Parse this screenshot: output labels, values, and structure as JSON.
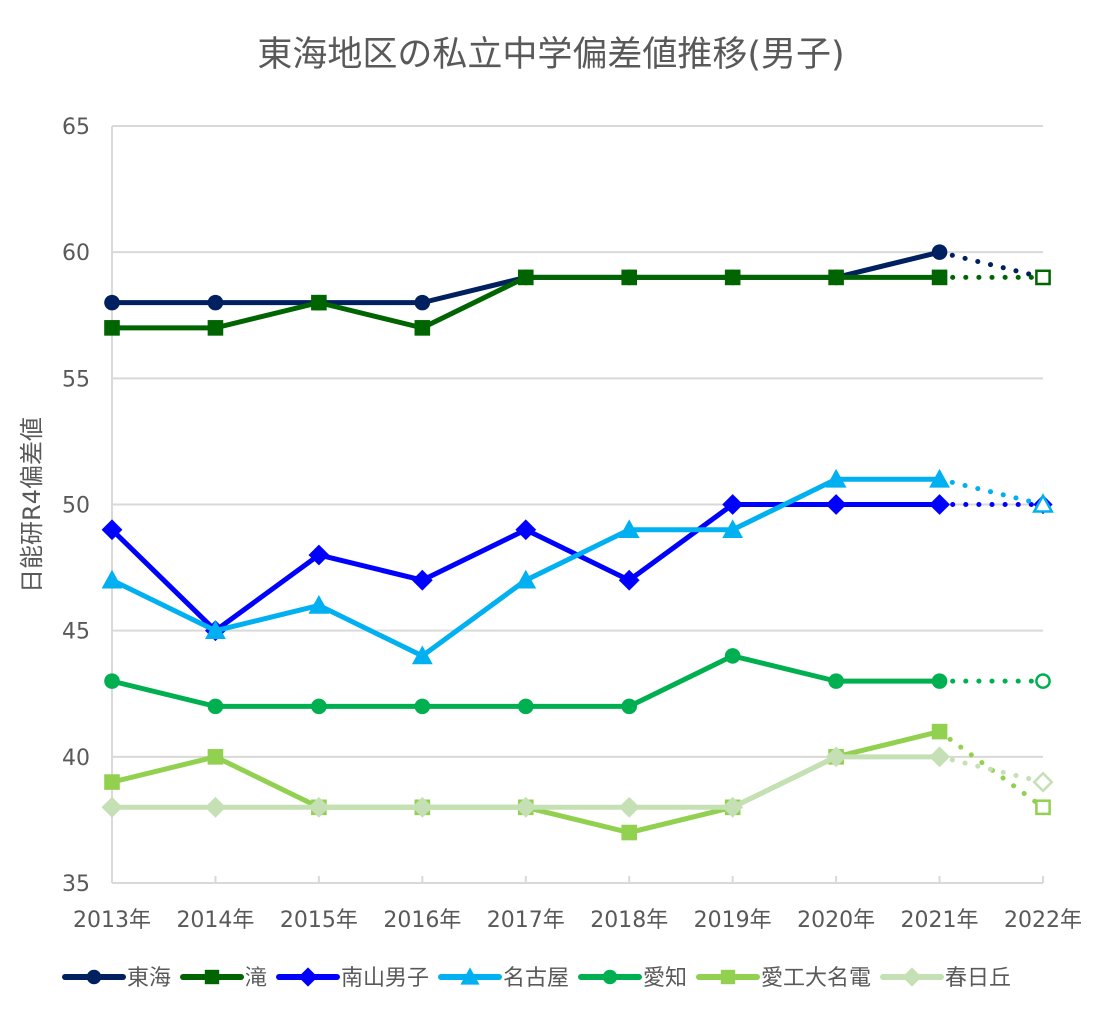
{
  "chart_data": {
    "type": "line",
    "title": "東海地区の私立中学偏差値推移(男子)",
    "xlabel": "",
    "ylabel": "日能研R4偏差値",
    "ylim": [
      35,
      65
    ],
    "yticks": [
      "35",
      "40",
      "45",
      "50",
      "55",
      "60",
      "65"
    ],
    "ytick_values": [
      35,
      40,
      45,
      50,
      55,
      60,
      65
    ],
    "categories": [
      "2013年",
      "2014年",
      "2015年",
      "2016年",
      "2017年",
      "2018年",
      "2019年",
      "2020年",
      "2021年",
      "2022年"
    ],
    "grid": true,
    "legend_position": "bottom",
    "projected_last_point": true,
    "series": [
      {
        "name": "東海",
        "color": "#002060",
        "marker": "circle",
        "values": [
          58,
          58,
          58,
          58,
          59,
          59,
          59,
          59,
          60,
          59
        ],
        "last_marker": "none"
      },
      {
        "name": "滝",
        "color": "#006400",
        "marker": "square",
        "values": [
          57,
          57,
          58,
          57,
          59,
          59,
          59,
          59,
          59,
          59
        ],
        "last_marker": "hollow"
      },
      {
        "name": "南山男子",
        "color": "#0000ff",
        "marker": "diamond",
        "values": [
          49,
          45,
          48,
          47,
          49,
          47,
          50,
          50,
          50,
          50
        ],
        "last_marker": "filled"
      },
      {
        "name": "名古屋",
        "color": "#00b0f0",
        "marker": "triangle",
        "values": [
          47,
          45,
          46,
          44,
          47,
          49,
          49,
          51,
          51,
          50
        ],
        "last_marker": "hollow"
      },
      {
        "name": "愛知",
        "color": "#00b050",
        "marker": "circle",
        "values": [
          43,
          42,
          42,
          42,
          42,
          42,
          44,
          43,
          43,
          43
        ],
        "last_marker": "hollow"
      },
      {
        "name": "愛工大名電",
        "color": "#92d050",
        "marker": "square",
        "values": [
          39,
          40,
          38,
          38,
          38,
          37,
          38,
          40,
          41,
          38
        ],
        "last_marker": "hollow"
      },
      {
        "name": "春日丘",
        "color": "#c5e0b4",
        "marker": "diamond",
        "values": [
          38,
          38,
          38,
          38,
          38,
          38,
          38,
          40,
          40,
          39
        ],
        "last_marker": "hollow"
      }
    ]
  }
}
